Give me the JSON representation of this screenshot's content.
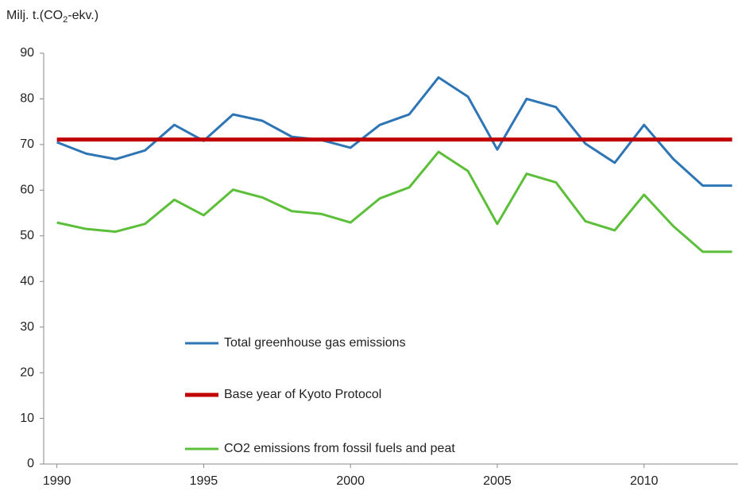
{
  "chart_data": {
    "type": "line",
    "y_label": [
      "Milj. t.(CO",
      "2",
      "-ekv.)"
    ],
    "x": [
      1990,
      1991,
      1992,
      1993,
      1994,
      1995,
      1996,
      1997,
      1998,
      1999,
      2000,
      2001,
      2002,
      2003,
      2004,
      2005,
      2006,
      2007,
      2008,
      2009,
      2010,
      2011,
      2012,
      2013
    ],
    "series": [
      {
        "name": "Total greenhouse gas emissions",
        "color": "#2e75b6",
        "width": 3,
        "values": [
          70.5,
          68,
          66.8,
          68.7,
          74.3,
          70.8,
          76.6,
          75.2,
          71.7,
          71,
          69.3,
          74.3,
          76.6,
          84.7,
          80.5,
          68.9,
          80,
          78.2,
          70.2,
          66,
          74.3,
          66.8,
          61,
          61
        ]
      },
      {
        "name": "Base year of Kyoto Protocol",
        "color": "#c00000",
        "width": 5,
        "values": [
          71.1,
          71.1,
          71.1,
          71.1,
          71.1,
          71.1,
          71.1,
          71.1,
          71.1,
          71.1,
          71.1,
          71.1,
          71.1,
          71.1,
          71.1,
          71.1,
          71.1,
          71.1,
          71.1,
          71.1,
          71.1,
          71.1,
          71.1,
          71.1
        ]
      },
      {
        "name": "CO2 emissions from fossil fuels and peat",
        "color": "#5cbf3a",
        "width": 3,
        "values": [
          52.9,
          51.5,
          50.9,
          52.6,
          57.9,
          54.5,
          60.1,
          58.4,
          55.4,
          54.8,
          52.9,
          58.2,
          60.6,
          68.4,
          64.2,
          52.6,
          63.6,
          61.7,
          53.2,
          51.2,
          59,
          52.1,
          46.5,
          46.5
        ]
      }
    ],
    "xlim": [
      1989.55,
      2013.2
    ],
    "xticks": [
      1990,
      1995,
      2000,
      2005,
      2010
    ],
    "ylim": [
      0,
      90
    ],
    "yticks": [
      0,
      10,
      20,
      30,
      40,
      50,
      60,
      70,
      80,
      90
    ],
    "grid": false
  }
}
